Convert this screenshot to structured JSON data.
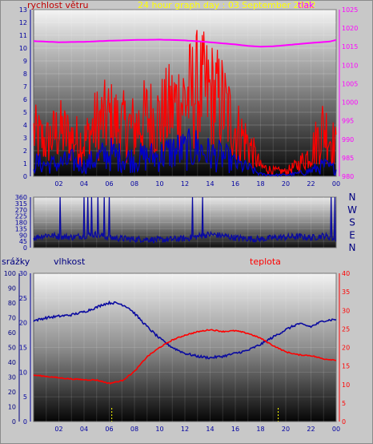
{
  "colors": {
    "wind": "#ff0000",
    "gust": "#0000cc",
    "pressure": "#ff00ff",
    "direction": "#0a0aa0",
    "humidity": "#0a0aa0",
    "temperature": "#ff0000",
    "rain": "#000080",
    "title": "#ffff00",
    "axis_blue": "#0000a0",
    "axis_magenta": "#ff00ff"
  },
  "header": {
    "wind_label": "rychlost větru",
    "title": "24 hour graph day : 03 September 2022",
    "pressure_label": "tlak"
  },
  "bottom_header": {
    "rain_label": "srážky",
    "humidity_label": "vlhkost",
    "temperature_label": "teplota"
  },
  "chart_data": [
    {
      "type": "line",
      "title": "24 hour graph day : 03 September 2022",
      "x_ticks": [
        "02",
        "04",
        "06",
        "08",
        "10",
        "12",
        "14",
        "16",
        "18",
        "20",
        "22",
        "00"
      ],
      "y_left_label": "rychlost větru",
      "y_left_ticks": [
        0,
        1,
        2,
        3,
        4,
        5,
        6,
        7,
        8,
        9,
        10,
        11,
        12,
        13
      ],
      "ylim_left": [
        0,
        13
      ],
      "y_right_label": "tlak",
      "y_right_ticks": [
        980,
        985,
        990,
        995,
        1000,
        1005,
        1010,
        1015,
        1020,
        1025
      ],
      "ylim_right": [
        980,
        1025
      ],
      "series": [
        {
          "name": "tlak",
          "axis": "right",
          "x_hours": [
            0,
            2,
            4,
            6,
            8,
            10,
            12,
            14,
            16,
            17,
            18,
            19,
            20,
            22,
            23.5,
            24
          ],
          "values": [
            1016.5,
            1016.2,
            1016.3,
            1016.6,
            1016.8,
            1016.9,
            1016.7,
            1016.2,
            1015.6,
            1015.2,
            1015.0,
            1015.1,
            1015.4,
            1016.0,
            1016.4,
            1016.8
          ]
        },
        {
          "name": "wind",
          "axis": "left",
          "x_hours": [
            0,
            1,
            2,
            3,
            4,
            5,
            6,
            7,
            8,
            9,
            10,
            11,
            12,
            13,
            14,
            15,
            16,
            17,
            18,
            19,
            20,
            21,
            22,
            23,
            24
          ],
          "values": [
            2.0,
            1.6,
            1.8,
            2.2,
            1.5,
            2.5,
            3.2,
            2.6,
            2.4,
            2.8,
            2.8,
            3.6,
            3.6,
            4.0,
            3.0,
            2.8,
            1.8,
            1.2,
            0.3,
            0.2,
            0.2,
            0.4,
            0.8,
            1.5,
            1.0
          ]
        },
        {
          "name": "gust",
          "axis": "left",
          "x_hours": [
            0,
            1,
            2,
            3,
            4,
            5,
            6,
            7,
            8,
            9,
            10,
            11,
            12,
            13,
            14,
            15,
            16,
            17,
            18,
            19,
            20,
            21,
            22,
            23,
            24
          ],
          "values": [
            4.5,
            3.5,
            4.8,
            4.0,
            3.5,
            5.5,
            6.0,
            5.2,
            5.0,
            6.2,
            6.0,
            7.2,
            8.0,
            9.0,
            8.5,
            7.5,
            5.0,
            3.5,
            1.0,
            0.6,
            0.5,
            1.2,
            2.5,
            5.2,
            3.0
          ]
        }
      ]
    },
    {
      "type": "line",
      "x_ticks": [],
      "y_ticks": [
        0,
        45,
        90,
        135,
        180,
        225,
        270,
        315,
        360
      ],
      "ylim": [
        0,
        360
      ],
      "direction_labels": [
        "N",
        "W",
        "S",
        "E",
        "N"
      ],
      "series": [
        {
          "name": "direction",
          "x_hours": [
            0,
            1,
            2,
            3,
            4,
            5,
            6,
            7,
            8,
            9,
            10,
            11,
            12,
            13,
            14,
            15,
            16,
            17,
            18,
            19,
            20,
            21,
            22,
            23,
            24
          ],
          "values": [
            70,
            90,
            80,
            75,
            85,
            95,
            70,
            65,
            60,
            60,
            55,
            60,
            65,
            80,
            95,
            85,
            70,
            65,
            60,
            70,
            75,
            80,
            70,
            85,
            60
          ]
        }
      ]
    },
    {
      "type": "line",
      "x_ticks": [
        "02",
        "04",
        "06",
        "08",
        "10",
        "12",
        "14",
        "16",
        "18",
        "20",
        "22",
        "00"
      ],
      "y_left_label": "vlhkost",
      "y_rain_label": "srážky",
      "y_rain_ticks": [
        0,
        10,
        20,
        30,
        40,
        50,
        60,
        70,
        80,
        90,
        100
      ],
      "ylim_rain": [
        0,
        100
      ],
      "y_hum_ticks": [
        0,
        5,
        10,
        15,
        20,
        25,
        30
      ],
      "ylim_hum": [
        0,
        30
      ],
      "y_right_label": "teplota",
      "y_right_ticks": [
        0,
        5,
        10,
        15,
        20,
        25,
        30,
        35,
        40
      ],
      "ylim_right": [
        0,
        40
      ],
      "series": [
        {
          "name": "vlhkost",
          "axis": "rain",
          "x_hours": [
            0,
            1,
            2,
            3,
            4,
            5,
            5.5,
            6,
            6.5,
            7,
            7.5,
            8,
            9,
            10,
            11,
            12,
            13,
            14,
            15,
            16,
            17,
            18,
            19,
            20,
            21,
            22,
            23,
            24
          ],
          "values": [
            68,
            70,
            71,
            72,
            74,
            77,
            79,
            80,
            80,
            79,
            77,
            73,
            64,
            56,
            50,
            46,
            44,
            43,
            44,
            46,
            48,
            52,
            57,
            62,
            66,
            64,
            68,
            69
          ]
        },
        {
          "name": "teplota",
          "axis": "right",
          "x_hours": [
            0,
            1,
            2,
            3,
            4,
            5,
            6,
            7,
            8,
            9,
            10,
            11,
            12,
            13,
            14,
            15,
            16,
            17,
            18,
            19,
            20,
            21,
            22,
            23,
            24
          ],
          "values": [
            12.5,
            12.2,
            11.8,
            11.5,
            11.3,
            11.2,
            10.3,
            11.0,
            13.5,
            17.5,
            20.0,
            22.0,
            23.3,
            24.2,
            24.8,
            24.3,
            24.5,
            23.8,
            22.5,
            20.5,
            18.8,
            18.0,
            17.8,
            16.9,
            16.6
          ]
        },
        {
          "name": "srážky",
          "axis": "rain",
          "x_hours": [
            6.2,
            19.4
          ],
          "values": [
            0,
            0
          ]
        }
      ]
    }
  ]
}
